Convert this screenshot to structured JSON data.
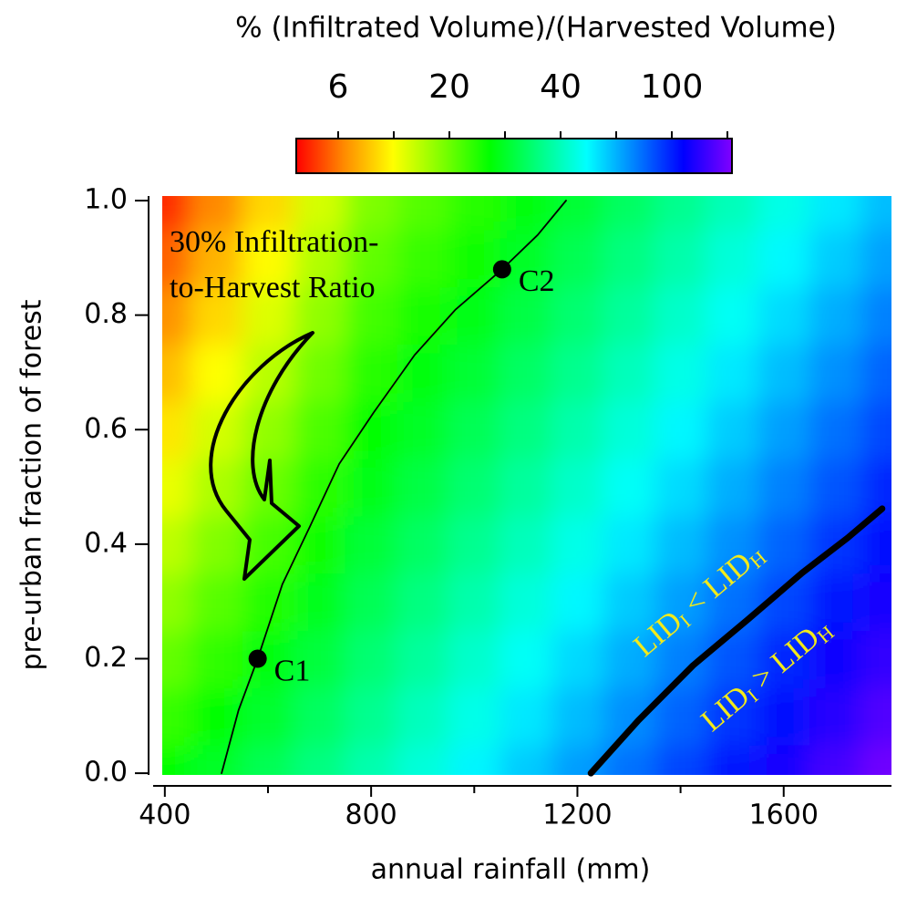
{
  "chart_data": {
    "type": "heatmap",
    "x_label": "annual rainfall (mm)",
    "y_label": "pre-urban fraction of forest",
    "xlim": [
      395,
      1809
    ],
    "ylim": [
      -0.003,
      1.008
    ],
    "xticks": [
      400,
      800,
      1200,
      1600
    ],
    "xminor_ticks": [
      600,
      1000,
      1400
    ],
    "yticks": [
      {
        "value": 0,
        "label": "0.0"
      },
      0.2,
      0.4,
      0.6,
      0.8,
      {
        "value": 1,
        "label": "1.0"
      }
    ],
    "x": [
      400,
      500,
      600,
      700,
      800,
      900,
      1000,
      1100,
      1200,
      1300,
      1400,
      1500,
      1600,
      1700,
      1800
    ],
    "y": [
      0,
      0.1,
      0.2,
      0.3,
      0.4,
      0.5,
      0.6,
      0.7,
      0.8,
      0.9,
      1.0
    ],
    "z": [
      [
        25.4,
        28.3,
        31.4,
        34.9,
        38.9,
        44.3,
        51,
        58.5,
        67.4,
        77.4,
        89.1,
        103,
        118,
        136,
        156
      ],
      [
        22.8,
        25.6,
        28.7,
        32.3,
        36.2,
        40.4,
        46.3,
        53.3,
        61.3,
        70.6,
        80.9,
        93.3,
        107,
        124,
        142
      ],
      [
        20.4,
        23.1,
        26.2,
        29.7,
        33.7,
        37.4,
        42.3,
        48.5,
        55.9,
        64.1,
        73.9,
        84.8,
        97.7,
        113,
        129
      ],
      [
        17.2,
        21.0,
        23.9,
        27.4,
        31.4,
        34.9,
        38.7,
        44.3,
        50.7,
        58.5,
        67.1,
        77.4,
        88.7,
        103,
        117
      ],
      [
        14.2,
        18.3,
        21.9,
        25.3,
        29.3,
        32.5,
        36.2,
        40.2,
        46.3,
        53.1,
        61.3,
        70.3,
        80.9,
        93.3,
        107
      ],
      [
        11.8,
        15.3,
        20,
        23.4,
        27.2,
        30.3,
        33.6,
        37.4,
        42.1,
        48.5,
        55.6,
        64.1,
        73.6,
        84.8,
        97.3
      ],
      [
        9.7,
        13.0,
        17.1,
        21.5,
        25.4,
        28.2,
        31.4,
        34.8,
        38.7,
        44.1,
        50.7,
        58.2,
        67.1,
        77.4,
        88.7
      ],
      [
        8.1,
        10.9,
        14.6,
        19.8,
        23.6,
        26.3,
        29.2,
        32.5,
        36.1,
        40.2,
        46.1,
        53.1,
        61.0,
        70.3,
        80.6
      ],
      [
        6.6,
        9.1,
        12.5,
        17.2,
        22.0,
        24.4,
        27.2,
        30.2,
        33.6,
        37.3,
        42.1,
        48.3,
        55.6,
        64.1,
        73.6
      ],
      [
        5.5,
        7.7,
        10.7,
        15.0,
        20.5,
        22.8,
        25.3,
        28.2,
        31.3,
        34.8,
        38.6,
        44.1,
        50.5,
        58.2,
        66.8
      ],
      [
        4.5,
        6.4,
        9.1,
        13.0,
        18.5,
        21.2,
        23.6,
        26.2,
        29.2,
        32.4,
        36.1,
        40,
        46.1,
        53.1,
        61.0
      ]
    ],
    "colorbar": {
      "title": "% (Infiltrated Volume)/(Harvested Volume)",
      "ticks": [
        6,
        20,
        40,
        100
      ],
      "colormap": [
        "#ff0000",
        "#ff8c00",
        "#ffff00",
        "#80ff00",
        "#00ff00",
        "#00ff80",
        "#00ffff",
        "#0080ff",
        "#0000ff",
        "#8000ff"
      ]
    },
    "contour": {
      "x": [
        510,
        543,
        580,
        628,
        681,
        738,
        805,
        884,
        964,
        1054,
        1123,
        1178
      ],
      "y": [
        0,
        0.11,
        0.2,
        0.33,
        0.43,
        0.54,
        0.63,
        0.73,
        0.81,
        0.88,
        0.94,
        1.0
      ]
    },
    "boundary": {
      "x": [
        1226,
        1318,
        1424,
        1530,
        1636,
        1724,
        1791
      ],
      "y": [
        0,
        0.092,
        0.188,
        0.268,
        0.35,
        0.411,
        0.462
      ]
    },
    "points": [
      {
        "label": "C1",
        "x": 580,
        "y": 0.2
      },
      {
        "label": "C2",
        "x": 1054,
        "y": 0.88
      }
    ],
    "annotation": [
      "30% Infiltration-",
      "to-Harvest Ratio"
    ],
    "region_labels": [
      [
        "LID",
        "I",
        " < LID",
        "H"
      ],
      [
        "LID",
        "I",
        " > LID",
        "H"
      ]
    ],
    "region_label_color": "#f2ea1a"
  }
}
